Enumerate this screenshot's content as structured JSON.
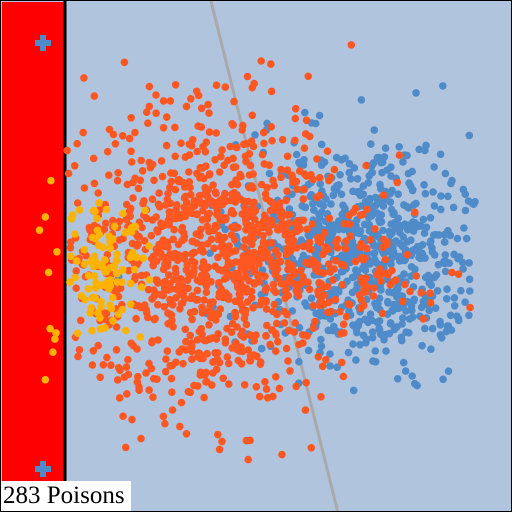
{
  "counter": {
    "count": "283",
    "unit": "Poisons"
  },
  "colors": {
    "background": "#b0c4de",
    "panel": "#ff0000",
    "panel_border": "#000000",
    "orange_points": "#ff5722",
    "blue_points": "#4f8bc9",
    "yellow_points": "#ffb300",
    "boundary": "#a9a9a9",
    "marker": "#4f8bc9"
  },
  "icons": {
    "top_marker": "plus-icon",
    "bottom_marker": "plus-icon"
  },
  "clusters": {
    "orange": {
      "points": 1050
    },
    "blue": {
      "points": 800
    },
    "yellow": {
      "points": 110
    }
  }
}
